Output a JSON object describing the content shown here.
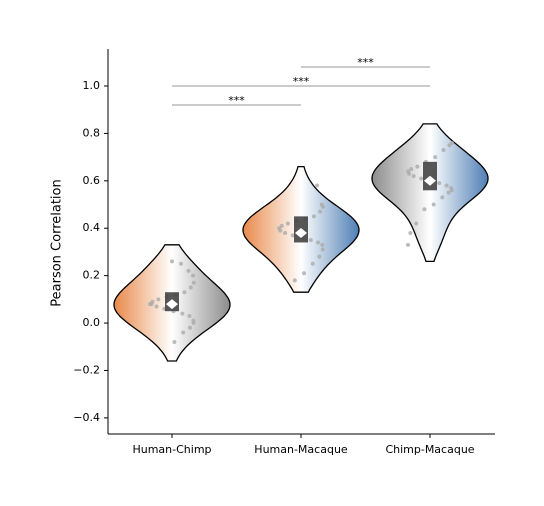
{
  "chart_data": {
    "type": "violin",
    "y_label": "Pearson Correlation",
    "ylim": [
      -0.468,
      1.156
    ],
    "yticks": [
      {
        "value": -0.4,
        "label": "−0.4"
      },
      {
        "value": -0.2,
        "label": "−0.2"
      },
      {
        "value": 0,
        "label": "0.0"
      },
      {
        "value": 0.2,
        "label": "0.2"
      },
      {
        "value": 0.4,
        "label": "0.4"
      },
      {
        "value": 0.6,
        "label": "0.6"
      },
      {
        "value": 0.8,
        "label": "0.8"
      },
      {
        "value": 1.0,
        "label": "1.0"
      }
    ],
    "series": [
      {
        "name": "Human-Chimp",
        "colors": [
          "#e8894a",
          "#8c8c8c"
        ],
        "min": -0.16,
        "q1": 0.05,
        "median": 0.08,
        "q3": 0.13,
        "max": 0.33,
        "points": [
          0.26,
          0.25,
          0.22,
          0.2,
          0.17,
          0.15,
          0.13,
          0.12,
          0.11,
          0.1,
          0.09,
          0.08,
          0.08,
          0.07,
          0.06,
          0.05,
          0.04,
          0.03,
          0.01,
          0.0,
          -0.02,
          -0.04,
          -0.08
        ]
      },
      {
        "name": "Human-Macaque",
        "colors": [
          "#e8894a",
          "#4f7fb5"
        ],
        "min": 0.13,
        "q1": 0.34,
        "median": 0.38,
        "q3": 0.45,
        "max": 0.66,
        "points": [
          0.58,
          0.5,
          0.49,
          0.47,
          0.45,
          0.44,
          0.43,
          0.42,
          0.41,
          0.4,
          0.39,
          0.38,
          0.37,
          0.36,
          0.35,
          0.34,
          0.33,
          0.31,
          0.28,
          0.25,
          0.21,
          0.18
        ]
      },
      {
        "name": "Chimp-Macaque",
        "colors": [
          "#8c8c8c",
          "#4f7fb5"
        ],
        "min": 0.26,
        "q1": 0.56,
        "median": 0.6,
        "q3": 0.68,
        "max": 0.84,
        "points": [
          0.76,
          0.75,
          0.73,
          0.7,
          0.68,
          0.66,
          0.65,
          0.64,
          0.63,
          0.62,
          0.61,
          0.6,
          0.59,
          0.58,
          0.57,
          0.56,
          0.55,
          0.53,
          0.5,
          0.48,
          0.42,
          0.38,
          0.33
        ]
      }
    ],
    "annotations": [
      {
        "pair": [
          "Human-Chimp",
          "Human-Macaque"
        ],
        "y": 0.92,
        "label": "***"
      },
      {
        "pair": [
          "Human-Chimp",
          "Chimp-Macaque"
        ],
        "y": 1.0,
        "label": "***"
      },
      {
        "pair": [
          "Human-Macaque",
          "Chimp-Macaque"
        ],
        "y": 1.08,
        "label": "***"
      }
    ]
  }
}
